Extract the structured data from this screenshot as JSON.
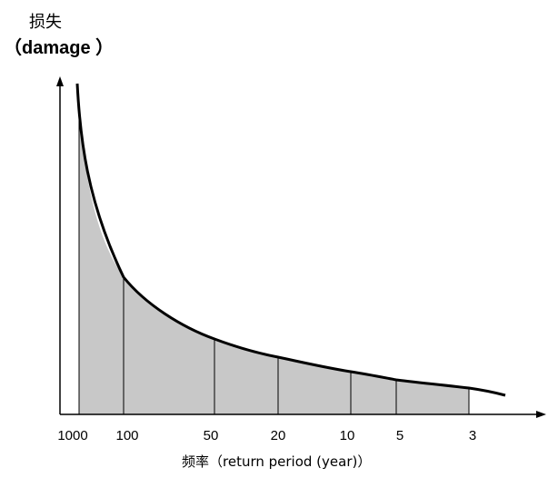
{
  "chart_data": {
    "type": "area",
    "ylabel_line1": "损失",
    "ylabel_line2": "（damage ）",
    "xlabel": "频率（return period (year)）",
    "x_ticks": [
      "1000",
      "100",
      "50",
      "20",
      "10",
      "5",
      "3"
    ],
    "grid": false,
    "shaded_area_under_curve": true,
    "colors": {
      "fill": "#c8c8c8",
      "curve": "#000000",
      "axis": "#000000"
    }
  }
}
